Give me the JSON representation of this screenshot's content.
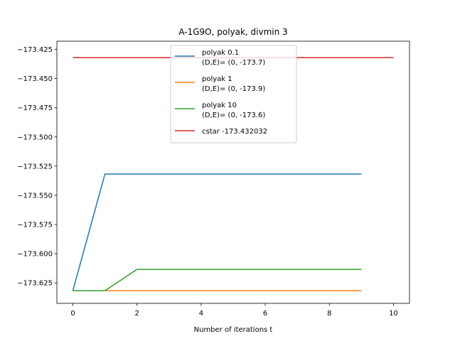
{
  "chart_data": {
    "type": "line",
    "title": "A-1G9O, polyak, divmin 3",
    "xlabel": "Number of iterations t",
    "ylabel": "",
    "xlim": [
      -0.5,
      10.5
    ],
    "ylim": [
      -173.6425,
      -173.418
    ],
    "xticks": [
      0,
      2,
      4,
      6,
      8,
      10
    ],
    "xtick_labels": [
      "0",
      "2",
      "4",
      "6",
      "8",
      "10"
    ],
    "yticks": [
      -173.425,
      -173.45,
      -173.475,
      -173.5,
      -173.525,
      -173.55,
      -173.575,
      -173.6,
      -173.625
    ],
    "ytick_labels": [
      "−173.425",
      "−173.450",
      "−173.475",
      "−173.500",
      "−173.525",
      "−173.550",
      "−173.575",
      "−173.600",
      "−173.625"
    ],
    "grid": false,
    "legend_position": "top-center",
    "series": [
      {
        "name_lines": [
          "polyak 0.1",
          "(D,E)= (0, -173.7)"
        ],
        "color": "#1f77b4",
        "x": [
          0,
          1,
          2,
          3,
          4,
          5,
          6,
          7,
          8,
          9
        ],
        "y": [
          -173.6317,
          -173.5318,
          -173.5318,
          -173.5318,
          -173.5318,
          -173.5318,
          -173.5318,
          -173.5318,
          -173.5318,
          -173.5318
        ]
      },
      {
        "name_lines": [
          "polyak 1",
          "(D,E)= (0, -173.9)"
        ],
        "color": "#ff7f0e",
        "x": [
          0,
          1,
          2,
          3,
          4,
          5,
          6,
          7,
          8,
          9
        ],
        "y": [
          -173.6317,
          -173.6317,
          -173.6317,
          -173.6317,
          -173.6317,
          -173.6317,
          -173.6317,
          -173.6317,
          -173.6317,
          -173.6317
        ]
      },
      {
        "name_lines": [
          "polyak 10",
          "(D,E)= (0, -173.6)"
        ],
        "color": "#2ca02c",
        "x": [
          0,
          1,
          2,
          3,
          4,
          5,
          6,
          7,
          8,
          9
        ],
        "y": [
          -173.6317,
          -173.6317,
          -173.6134,
          -173.6134,
          -173.6134,
          -173.6134,
          -173.6134,
          -173.6134,
          -173.6134,
          -173.6134
        ]
      },
      {
        "name_lines": [
          "cstar -173.432032"
        ],
        "color": "#d62728",
        "x": [
          0,
          10
        ],
        "y": [
          -173.432032,
          -173.432032
        ]
      }
    ]
  }
}
